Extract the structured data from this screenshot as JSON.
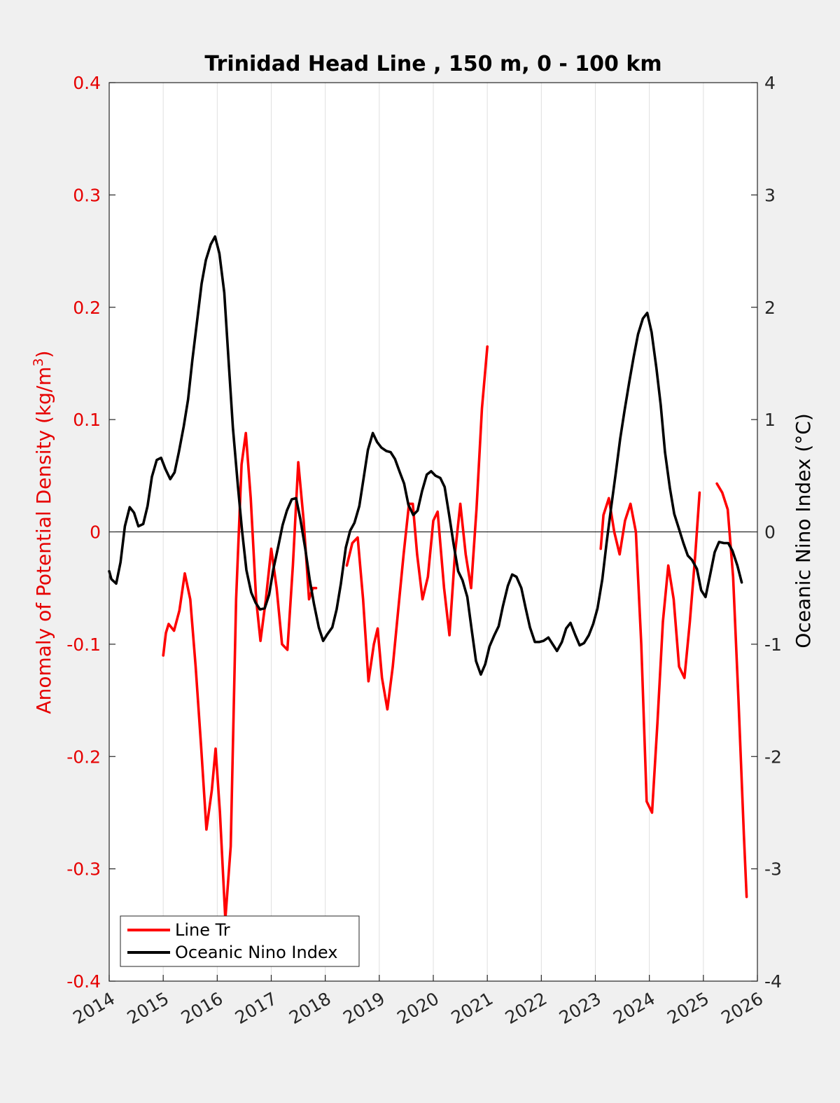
{
  "chart_data": {
    "type": "line",
    "title": "Trinidad Head Line , 150 m, 0 - 100 km",
    "xlabel": "",
    "ylabel_left": "Anomaly of Potential Density (kg/m",
    "ylabel_left_sup": "3",
    "ylabel_left_close": ")",
    "ylabel_right": "Oceanic Nino Index (°C)",
    "xlim": [
      2014,
      2026
    ],
    "ylim_left": [
      -0.4,
      0.4
    ],
    "ylim_right": [
      -4,
      4
    ],
    "x_ticks": [
      "2014",
      "2015",
      "2016",
      "2017",
      "2018",
      "2019",
      "2020",
      "2021",
      "2022",
      "2023",
      "2024",
      "2025",
      "2026"
    ],
    "y_left_ticks": [
      "0.4",
      "0.3",
      "0.2",
      "0.1",
      "0",
      "-0.1",
      "-0.2",
      "-0.3",
      "-0.4"
    ],
    "y_right_ticks": [
      "4",
      "3",
      "2",
      "1",
      "0",
      "-1",
      "-2",
      "-3",
      "-4"
    ],
    "grid": "vertical",
    "legend_position": "bottom-left",
    "colors": {
      "left_axis": "#e60000",
      "line_tr": "#ff0000",
      "oni": "#000000"
    },
    "series": [
      {
        "name": "Line Tr",
        "axis": "left",
        "color": "#ff0000",
        "segments": [
          [
            [
              2015.0,
              -0.11
            ],
            [
              2015.05,
              -0.09
            ],
            [
              2015.1,
              -0.082
            ],
            [
              2015.2,
              -0.088
            ],
            [
              2015.3,
              -0.07
            ],
            [
              2015.4,
              -0.037
            ],
            [
              2015.5,
              -0.06
            ],
            [
              2015.6,
              -0.12
            ],
            [
              2015.7,
              -0.19
            ],
            [
              2015.8,
              -0.265
            ],
            [
              2015.9,
              -0.23
            ],
            [
              2015.97,
              -0.193
            ],
            [
              2016.05,
              -0.25
            ],
            [
              2016.15,
              -0.345
            ],
            [
              2016.25,
              -0.28
            ],
            [
              2016.35,
              -0.06
            ],
            [
              2016.45,
              0.06
            ],
            [
              2016.53,
              0.088
            ],
            [
              2016.62,
              0.03
            ],
            [
              2016.72,
              -0.06
            ],
            [
              2016.8,
              -0.097
            ],
            [
              2016.9,
              -0.06
            ],
            [
              2017.0,
              -0.015
            ],
            [
              2017.1,
              -0.05
            ],
            [
              2017.2,
              -0.1
            ],
            [
              2017.3,
              -0.105
            ],
            [
              2017.4,
              -0.03
            ],
            [
              2017.5,
              0.062
            ],
            [
              2017.6,
              0.01
            ],
            [
              2017.7,
              -0.06
            ],
            [
              2017.77,
              -0.05
            ],
            [
              2017.83,
              -0.05
            ]
          ],
          [
            [
              2018.4,
              -0.03
            ],
            [
              2018.5,
              -0.01
            ],
            [
              2018.6,
              -0.005
            ],
            [
              2018.7,
              -0.06
            ],
            [
              2018.8,
              -0.133
            ],
            [
              2018.9,
              -0.1
            ],
            [
              2018.97,
              -0.086
            ],
            [
              2019.05,
              -0.13
            ],
            [
              2019.15,
              -0.158
            ],
            [
              2019.25,
              -0.12
            ],
            [
              2019.35,
              -0.07
            ],
            [
              2019.45,
              -0.02
            ],
            [
              2019.55,
              0.025
            ],
            [
              2019.62,
              0.025
            ],
            [
              2019.7,
              -0.02
            ],
            [
              2019.8,
              -0.06
            ],
            [
              2019.9,
              -0.04
            ],
            [
              2020.0,
              0.01
            ],
            [
              2020.08,
              0.018
            ],
            [
              2020.2,
              -0.05
            ],
            [
              2020.3,
              -0.092
            ],
            [
              2020.4,
              -0.02
            ],
            [
              2020.5,
              0.025
            ],
            [
              2020.6,
              -0.02
            ],
            [
              2020.7,
              -0.05
            ],
            [
              2020.8,
              0.02
            ],
            [
              2020.9,
              0.11
            ],
            [
              2021.0,
              0.165
            ]
          ],
          [
            [
              2023.1,
              -0.015
            ],
            [
              2023.15,
              0.015
            ],
            [
              2023.25,
              0.03
            ],
            [
              2023.35,
              0.0
            ],
            [
              2023.45,
              -0.02
            ],
            [
              2023.55,
              0.01
            ],
            [
              2023.65,
              0.025
            ],
            [
              2023.75,
              0.0
            ],
            [
              2023.85,
              -0.1
            ],
            [
              2023.95,
              -0.24
            ],
            [
              2024.05,
              -0.25
            ],
            [
              2024.15,
              -0.17
            ],
            [
              2024.25,
              -0.08
            ],
            [
              2024.35,
              -0.03
            ],
            [
              2024.45,
              -0.06
            ],
            [
              2024.55,
              -0.12
            ],
            [
              2024.65,
              -0.13
            ],
            [
              2024.75,
              -0.08
            ],
            [
              2024.85,
              -0.02
            ],
            [
              2024.93,
              0.035
            ]
          ],
          [
            [
              2025.25,
              0.043
            ],
            [
              2025.35,
              0.035
            ],
            [
              2025.45,
              0.02
            ],
            [
              2025.55,
              -0.04
            ],
            [
              2025.65,
              -0.15
            ],
            [
              2025.75,
              -0.27
            ],
            [
              2025.8,
              -0.325
            ]
          ]
        ]
      },
      {
        "name": "Oceanic Nino Index",
        "axis": "right",
        "color": "#000000",
        "segments": [
          [
            [
              2014.0,
              -0.35
            ],
            [
              2014.04,
              -0.42
            ],
            [
              2014.13,
              -0.46
            ],
            [
              2014.21,
              -0.27
            ],
            [
              2014.29,
              0.05
            ],
            [
              2014.38,
              0.22
            ],
            [
              2014.46,
              0.17
            ],
            [
              2014.54,
              0.05
            ],
            [
              2014.63,
              0.07
            ],
            [
              2014.71,
              0.23
            ],
            [
              2014.79,
              0.49
            ],
            [
              2014.88,
              0.64
            ],
            [
              2014.96,
              0.66
            ],
            [
              2015.04,
              0.56
            ],
            [
              2015.13,
              0.47
            ],
            [
              2015.21,
              0.53
            ],
            [
              2015.29,
              0.71
            ],
            [
              2015.38,
              0.94
            ],
            [
              2015.46,
              1.18
            ],
            [
              2015.54,
              1.53
            ],
            [
              2015.63,
              1.89
            ],
            [
              2015.71,
              2.21
            ],
            [
              2015.79,
              2.42
            ],
            [
              2015.88,
              2.56
            ],
            [
              2015.96,
              2.63
            ],
            [
              2016.04,
              2.48
            ],
            [
              2016.13,
              2.13
            ],
            [
              2016.21,
              1.53
            ],
            [
              2016.29,
              0.93
            ],
            [
              2016.38,
              0.42
            ],
            [
              2016.46,
              0.01
            ],
            [
              2016.54,
              -0.34
            ],
            [
              2016.63,
              -0.54
            ],
            [
              2016.71,
              -0.63
            ],
            [
              2016.79,
              -0.69
            ],
            [
              2016.88,
              -0.68
            ],
            [
              2016.96,
              -0.56
            ],
            [
              2017.04,
              -0.33
            ],
            [
              2017.13,
              -0.13
            ],
            [
              2017.21,
              0.06
            ],
            [
              2017.29,
              0.19
            ],
            [
              2017.38,
              0.29
            ],
            [
              2017.46,
              0.3
            ],
            [
              2017.54,
              0.11
            ],
            [
              2017.63,
              -0.15
            ],
            [
              2017.71,
              -0.42
            ],
            [
              2017.79,
              -0.64
            ],
            [
              2017.88,
              -0.85
            ],
            [
              2017.96,
              -0.97
            ],
            [
              2018.04,
              -0.91
            ],
            [
              2018.13,
              -0.85
            ],
            [
              2018.21,
              -0.69
            ],
            [
              2018.29,
              -0.46
            ],
            [
              2018.38,
              -0.14
            ],
            [
              2018.46,
              0.01
            ],
            [
              2018.54,
              0.08
            ],
            [
              2018.63,
              0.23
            ],
            [
              2018.71,
              0.48
            ],
            [
              2018.79,
              0.73
            ],
            [
              2018.88,
              0.88
            ],
            [
              2018.96,
              0.8
            ],
            [
              2019.04,
              0.75
            ],
            [
              2019.13,
              0.72
            ],
            [
              2019.21,
              0.71
            ],
            [
              2019.29,
              0.65
            ],
            [
              2019.38,
              0.53
            ],
            [
              2019.46,
              0.43
            ],
            [
              2019.54,
              0.24
            ],
            [
              2019.63,
              0.15
            ],
            [
              2019.71,
              0.19
            ],
            [
              2019.79,
              0.36
            ],
            [
              2019.88,
              0.51
            ],
            [
              2019.96,
              0.54
            ],
            [
              2020.04,
              0.5
            ],
            [
              2020.13,
              0.48
            ],
            [
              2020.21,
              0.4
            ],
            [
              2020.29,
              0.16
            ],
            [
              2020.38,
              -0.12
            ],
            [
              2020.46,
              -0.35
            ],
            [
              2020.54,
              -0.43
            ],
            [
              2020.63,
              -0.58
            ],
            [
              2020.71,
              -0.87
            ],
            [
              2020.79,
              -1.15
            ],
            [
              2020.88,
              -1.27
            ],
            [
              2020.96,
              -1.18
            ],
            [
              2021.04,
              -1.02
            ],
            [
              2021.13,
              -0.92
            ],
            [
              2021.21,
              -0.84
            ],
            [
              2021.29,
              -0.66
            ],
            [
              2021.38,
              -0.48
            ],
            [
              2021.46,
              -0.38
            ],
            [
              2021.54,
              -0.4
            ],
            [
              2021.63,
              -0.5
            ],
            [
              2021.71,
              -0.68
            ],
            [
              2021.79,
              -0.85
            ],
            [
              2021.88,
              -0.98
            ],
            [
              2021.96,
              -0.98
            ],
            [
              2022.04,
              -0.97
            ],
            [
              2022.13,
              -0.94
            ],
            [
              2022.21,
              -1.0
            ],
            [
              2022.29,
              -1.06
            ],
            [
              2022.38,
              -0.98
            ],
            [
              2022.46,
              -0.86
            ],
            [
              2022.54,
              -0.81
            ],
            [
              2022.63,
              -0.92
            ],
            [
              2022.71,
              -1.01
            ],
            [
              2022.79,
              -0.99
            ],
            [
              2022.88,
              -0.92
            ],
            [
              2022.96,
              -0.82
            ],
            [
              2023.04,
              -0.68
            ],
            [
              2023.13,
              -0.42
            ],
            [
              2023.21,
              -0.09
            ],
            [
              2023.29,
              0.21
            ],
            [
              2023.38,
              0.53
            ],
            [
              2023.46,
              0.83
            ],
            [
              2023.54,
              1.08
            ],
            [
              2023.63,
              1.34
            ],
            [
              2023.71,
              1.56
            ],
            [
              2023.79,
              1.76
            ],
            [
              2023.88,
              1.9
            ],
            [
              2023.96,
              1.95
            ],
            [
              2024.04,
              1.78
            ],
            [
              2024.13,
              1.46
            ],
            [
              2024.21,
              1.13
            ],
            [
              2024.29,
              0.71
            ],
            [
              2024.38,
              0.39
            ],
            [
              2024.46,
              0.16
            ],
            [
              2024.54,
              0.04
            ],
            [
              2024.63,
              -0.1
            ],
            [
              2024.71,
              -0.21
            ],
            [
              2024.79,
              -0.25
            ],
            [
              2024.88,
              -0.33
            ],
            [
              2024.96,
              -0.52
            ],
            [
              2025.04,
              -0.58
            ],
            [
              2025.13,
              -0.37
            ],
            [
              2025.21,
              -0.18
            ],
            [
              2025.29,
              -0.09
            ],
            [
              2025.38,
              -0.1
            ],
            [
              2025.46,
              -0.1
            ],
            [
              2025.54,
              -0.17
            ],
            [
              2025.63,
              -0.3
            ],
            [
              2025.71,
              -0.45
            ]
          ]
        ]
      }
    ]
  }
}
